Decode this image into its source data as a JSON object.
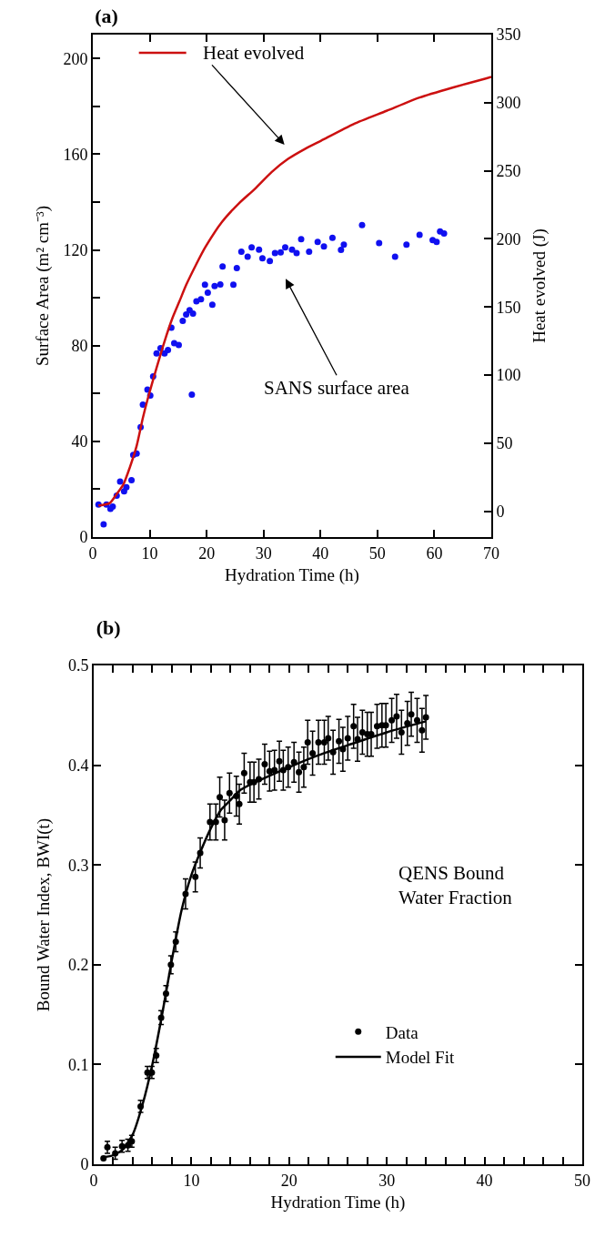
{
  "chart_data": [
    {
      "type": "scatter",
      "title": "(a)",
      "xlabel": "Hydration Time (h)",
      "ylabel": "Surface Area (m² cm⁻³)",
      "y2label": "Heat evolved (J)",
      "xlim": [
        0,
        70
      ],
      "xticks": [
        0,
        10,
        20,
        30,
        40,
        50,
        60,
        70
      ],
      "ylim": [
        0,
        210
      ],
      "yticks": [
        0,
        {
          "value": 20,
          "label": null
        },
        40,
        {
          "value": 60,
          "label": null
        },
        80,
        {
          "value": 100,
          "label": null
        },
        120,
        {
          "value": 140,
          "label": null
        },
        160,
        {
          "value": 180,
          "label": null
        },
        200
      ],
      "y2lim": [
        -19,
        350
      ],
      "y2ticks": [
        0,
        50,
        100,
        150,
        200,
        250,
        300,
        350
      ],
      "grid": false,
      "legend": false,
      "marker": "circle",
      "series": [
        {
          "type": "scatter",
          "color": "#1010f0",
          "x": [
            1.0,
            1.9,
            2.4,
            3.1,
            3.5,
            4.2,
            4.8,
            5.5,
            5.9,
            6.8,
            7.1,
            7.7,
            8.4,
            8.8,
            9.6,
            10.1,
            10.6,
            11.2,
            11.9,
            12.6,
            13.2,
            13.8,
            14.3,
            15.1,
            15.8,
            16.4,
            17.0,
            17.4,
            17.6,
            18.2,
            19.0,
            19.7,
            20.2,
            21.0,
            21.4,
            22.4,
            22.8,
            24.7,
            25.3,
            26.1,
            27.2,
            27.9,
            29.2,
            29.8,
            31.1,
            32.0,
            33.0,
            33.8,
            35.0,
            35.8,
            36.6,
            38.0,
            39.5,
            40.6,
            42.1,
            43.6,
            44.1,
            47.3,
            50.3,
            53.1,
            55.1,
            57.4,
            59.7,
            60.4,
            61.0,
            61.7
          ],
          "values": [
            13.6,
            5.3,
            13.6,
            11.8,
            12.7,
            17.3,
            23.2,
            19.1,
            20.8,
            23.8,
            34.3,
            34.9,
            45.9,
            55.4,
            61.6,
            59.2,
            67.1,
            76.8,
            78.9,
            76.8,
            78.2,
            87.5,
            81.0,
            80.3,
            90.4,
            93.0,
            94.8,
            59.5,
            93.4,
            98.5,
            99.4,
            105.5,
            102.1,
            97.1,
            104.9,
            105.6,
            113.1,
            105.5,
            112.4,
            119.3,
            117.2,
            121.1,
            120.1,
            116.5,
            115.4,
            118.7,
            119.0,
            121.1,
            120.1,
            118.7,
            124.5,
            119.3,
            123.4,
            121.5,
            125.1,
            120.0,
            122.2,
            130.4,
            122.9,
            117.2,
            122.2,
            126.3,
            124.1,
            123.4,
            127.7,
            126.9
          ]
        },
        {
          "type": "line",
          "axis": "y2",
          "color": "#cc1010",
          "marker": "none",
          "line_style": "solid",
          "x": [
            1.0,
            3.0,
            4.2,
            5.4,
            6.5,
            7.7,
            8.8,
            9.7,
            11.2,
            12.6,
            14.0,
            15.2,
            16.4,
            18.1,
            19.8,
            22.7,
            25.6,
            28.5,
            31.4,
            34.3,
            37.2,
            40.1,
            45.8,
            51.6,
            57.4,
            63.2,
            68.9,
            70
          ],
          "values": [
            4,
            6,
            12.6,
            19.9,
            32.1,
            47.9,
            68.6,
            83.3,
            105.2,
            124.7,
            141.9,
            153.9,
            166.1,
            180.7,
            194.1,
            212.4,
            225.8,
            236.8,
            249.0,
            258.7,
            265.9,
            272.1,
            284.3,
            294.0,
            303.8,
            311.1,
            317.6,
            319
          ]
        }
      ],
      "annotations": [
        "Heat evolved",
        "SANS surface area"
      ]
    },
    {
      "type": "scatter",
      "title": "(b)",
      "xlabel": "Hydration Time (h)",
      "ylabel": "Bound Water Index, BWI(t)",
      "xlim": [
        0,
        50
      ],
      "xticks": [
        0,
        {
          "value": 2,
          "label": null
        },
        {
          "value": 4,
          "label": null
        },
        {
          "value": 6,
          "label": null
        },
        {
          "value": 8,
          "label": null
        },
        10,
        {
          "value": 12,
          "label": null
        },
        {
          "value": 14,
          "label": null
        },
        {
          "value": 16,
          "label": null
        },
        {
          "value": 18,
          "label": null
        },
        20,
        {
          "value": 22,
          "label": null
        },
        {
          "value": 24,
          "label": null
        },
        {
          "value": 26,
          "label": null
        },
        {
          "value": 28,
          "label": null
        },
        30,
        {
          "value": 32,
          "label": null
        },
        {
          "value": 34,
          "label": null
        },
        {
          "value": 36,
          "label": null
        },
        {
          "value": 38,
          "label": null
        },
        40,
        {
          "value": 42,
          "label": null
        },
        {
          "value": 44,
          "label": null
        },
        {
          "value": 46,
          "label": null
        },
        {
          "value": 48,
          "label": null
        },
        50
      ],
      "ylim": [
        0,
        0.5
      ],
      "yticks": [
        0,
        0.1,
        0.2,
        0.3,
        0.4,
        0.5
      ],
      "grid": false,
      "legend": "bottom right",
      "marker": "circle",
      "series": [
        {
          "type": "scatter",
          "name": "Data",
          "color": "#000000",
          "x": [
            1.0,
            1.4,
            2.2,
            2.9,
            3.5,
            3.9,
            4.8,
            5.5,
            5.95,
            6.4,
            6.9,
            7.4,
            7.9,
            8.4,
            9.4,
            10.4,
            10.9,
            11.9,
            12.5,
            12.9,
            13.4,
            13.9,
            14.6,
            14.9,
            15.4,
            16.0,
            16.4,
            16.9,
            17.5,
            18.0,
            18.5,
            19.0,
            19.4,
            19.9,
            20.5,
            21.0,
            21.5,
            21.9,
            22.4,
            23.0,
            23.6,
            24.0,
            24.5,
            25.1,
            25.5,
            26.0,
            26.6,
            27.0,
            27.5,
            28.0,
            28.4,
            29.0,
            29.5,
            29.9,
            30.5,
            31.0,
            31.5,
            32.1,
            32.5,
            33.1,
            33.6,
            34.0
          ],
          "values": [
            0.006,
            0.017,
            0.011,
            0.018,
            0.019,
            0.023,
            0.058,
            0.092,
            0.092,
            0.109,
            0.147,
            0.171,
            0.2,
            0.223,
            0.271,
            0.288,
            0.312,
            0.343,
            0.343,
            0.368,
            0.345,
            0.372,
            0.369,
            0.361,
            0.392,
            0.383,
            0.383,
            0.386,
            0.401,
            0.394,
            0.395,
            0.404,
            0.395,
            0.398,
            0.403,
            0.393,
            0.398,
            0.423,
            0.412,
            0.423,
            0.423,
            0.427,
            0.413,
            0.424,
            0.416,
            0.427,
            0.439,
            0.426,
            0.433,
            0.431,
            0.431,
            0.439,
            0.44,
            0.44,
            0.445,
            0.449,
            0.433,
            0.442,
            0.451,
            0.445,
            0.435,
            0.448
          ],
          "errors": [
            null,
            0.006,
            0.006,
            0.006,
            0.006,
            0.006,
            0.006,
            0.006,
            0.006,
            0.007,
            0.007,
            0.008,
            0.009,
            0.01,
            0.015,
            0.015,
            0.015,
            0.018,
            0.018,
            0.02,
            0.02,
            0.02,
            0.02,
            0.02,
            0.02,
            0.02,
            0.02,
            0.02,
            0.02,
            0.02,
            0.02,
            0.02,
            0.02,
            0.02,
            0.02,
            0.02,
            0.02,
            0.022,
            0.022,
            0.022,
            0.022,
            0.022,
            0.022,
            0.022,
            0.022,
            0.022,
            0.022,
            0.022,
            0.022,
            0.022,
            0.022,
            0.022,
            0.022,
            0.022,
            0.022,
            0.022,
            0.022,
            0.022,
            0.022,
            0.022,
            0.022,
            0.022
          ]
        },
        {
          "type": "line",
          "name": "Model Fit",
          "color": "#000000",
          "marker": "none",
          "line_style": "solid",
          "x": [
            1,
            2,
            3,
            4,
            5,
            6,
            7,
            8,
            9,
            10,
            11,
            12,
            13,
            14,
            15,
            17,
            20,
            23,
            26,
            30,
            34
          ],
          "values": [
            0.007,
            0.009,
            0.015,
            0.03,
            0.06,
            0.1,
            0.15,
            0.205,
            0.255,
            0.29,
            0.315,
            0.337,
            0.355,
            0.365,
            0.375,
            0.385,
            0.398,
            0.41,
            0.42,
            0.433,
            0.444
          ]
        }
      ],
      "annotations": [
        "QENS Bound\nWater Fraction"
      ]
    }
  ]
}
